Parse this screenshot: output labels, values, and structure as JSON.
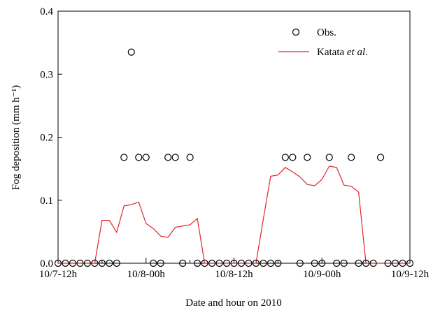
{
  "chart_data": {
    "type": "line",
    "title": "",
    "xlabel": "Date and hour on 2010",
    "ylabel": "Fog deposition (mm h⁻¹)",
    "ylim": [
      0,
      0.4
    ],
    "xlim": [
      0,
      48
    ],
    "y_ticks": [
      {
        "value": 0.0,
        "label": "0.0"
      },
      {
        "value": 0.1,
        "label": "0.1"
      },
      {
        "value": 0.2,
        "label": "0.2"
      },
      {
        "value": 0.3,
        "label": "0.3"
      },
      {
        "value": 0.4,
        "label": "0.4"
      }
    ],
    "x_ticks": [
      {
        "value": 0,
        "label": "10/7-12h"
      },
      {
        "value": 12,
        "label": "10/8-00h"
      },
      {
        "value": 24,
        "label": "10/8-12h"
      },
      {
        "value": 36,
        "label": "10/9-00h"
      },
      {
        "value": 48,
        "label": "10/9-12h"
      }
    ],
    "grid": false,
    "legend": {
      "position": "top-right",
      "entries": [
        {
          "label": "Obs.",
          "marker": "open-circle"
        },
        {
          "label_prefix": "Katata ",
          "label_italic": "et al",
          "label_suffix": ".",
          "marker": "line"
        }
      ]
    },
    "colors": {
      "obs": "#000000",
      "model": "#e0262b"
    },
    "series": [
      {
        "name": "Obs.",
        "kind": "scatter",
        "x": [
          0,
          1,
          2,
          3,
          4,
          5,
          6,
          7,
          8,
          9,
          10,
          11,
          12,
          13,
          14,
          15,
          16,
          17,
          18,
          19,
          20,
          21,
          22,
          23,
          24,
          25,
          26,
          27,
          28,
          29,
          30,
          31,
          32,
          33,
          34,
          35,
          36,
          37,
          38,
          39,
          40,
          41,
          42,
          43,
          44,
          45,
          46,
          47,
          48
        ],
        "y": [
          0,
          0,
          0,
          0,
          0,
          0,
          0,
          0,
          0,
          0.168,
          0.335,
          0.168,
          0.168,
          0,
          0,
          0.168,
          0.168,
          0,
          0.168,
          0,
          0,
          0,
          0,
          0,
          0,
          0,
          0,
          0,
          0,
          0,
          0,
          0.168,
          0.168,
          0,
          0.168,
          0,
          0,
          0.168,
          0,
          0,
          0.168,
          0,
          0,
          0,
          0.168,
          0,
          0,
          0,
          0
        ]
      },
      {
        "name": "Katata et al.",
        "kind": "line",
        "x": [
          0,
          1,
          2,
          3,
          4,
          5,
          6,
          7,
          8,
          9,
          10,
          11,
          12,
          13,
          14,
          15,
          16,
          17,
          18,
          19,
          20,
          21,
          22,
          23,
          24,
          25,
          26,
          27,
          28,
          29,
          30,
          31,
          32,
          33,
          34,
          35,
          36,
          37,
          38,
          39,
          40,
          41,
          42,
          43,
          44,
          45,
          46,
          47,
          48
        ],
        "y": [
          0,
          0,
          0,
          0,
          0,
          0,
          0.068,
          0.068,
          0.049,
          0.091,
          0.093,
          0.097,
          0.063,
          0.055,
          0.043,
          0.041,
          0.057,
          0.059,
          0.061,
          0.071,
          0,
          0,
          0,
          0,
          0,
          0,
          0,
          0,
          0.07,
          0.138,
          0.14,
          0.152,
          0.145,
          0.137,
          0.125,
          0.123,
          0.133,
          0.154,
          0.152,
          0.124,
          0.122,
          0.113,
          0,
          0,
          0,
          0,
          0,
          0,
          0
        ]
      }
    ]
  }
}
